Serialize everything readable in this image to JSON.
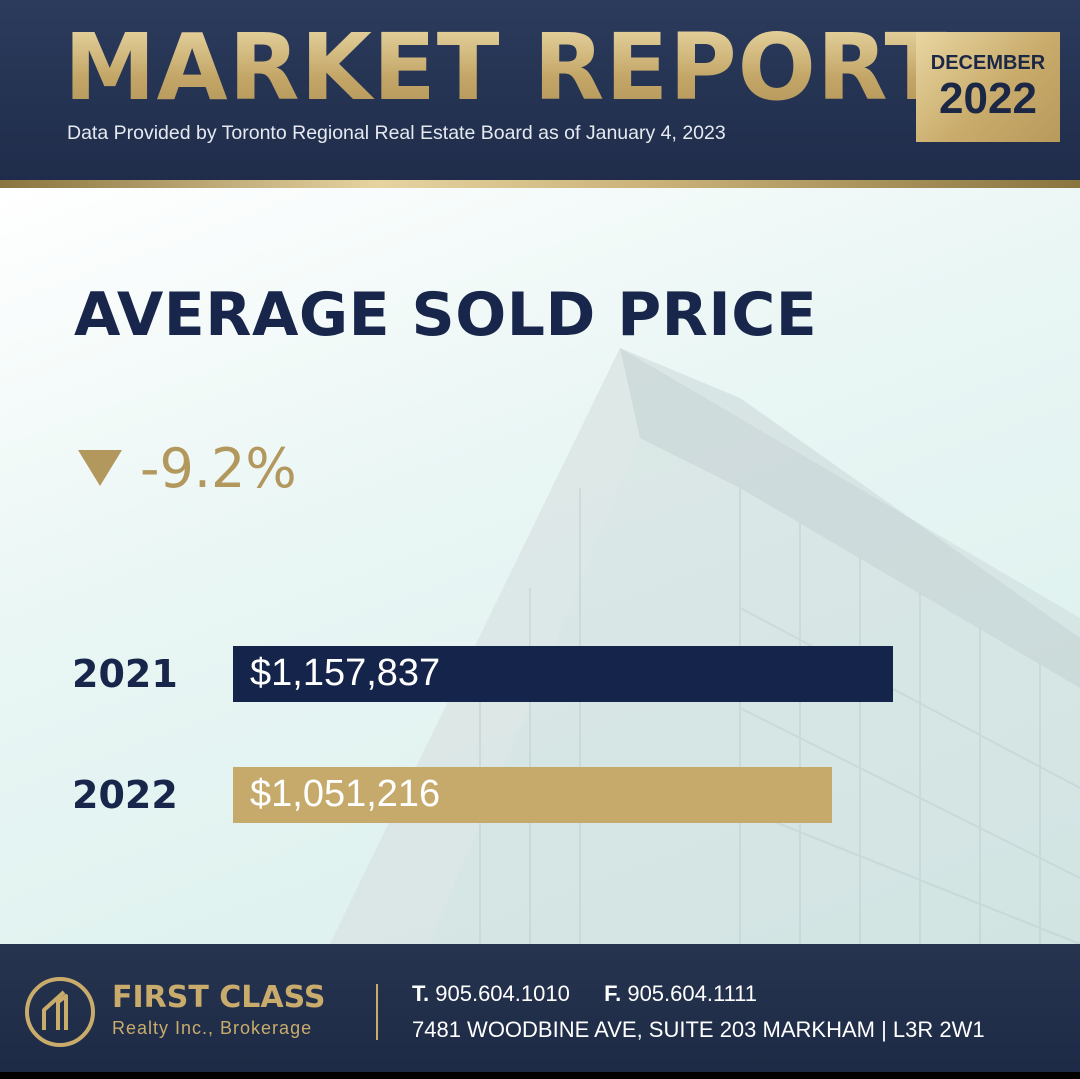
{
  "header": {
    "title": "MARKET REPORT",
    "subtitle": "Data Provided by Toronto Regional Real Estate Board as of January 4, 2023",
    "badge_month": "DECEMBER",
    "badge_year": "2022"
  },
  "change": {
    "icon": "triangle-down-icon",
    "value": "-9.2%"
  },
  "chart_data": {
    "type": "bar",
    "orientation": "horizontal",
    "title": "AVERAGE SOLD PRICE",
    "categories": [
      "2021",
      "2022"
    ],
    "values": [
      1157837,
      1051216
    ],
    "value_labels": [
      "$1,157,837",
      "$1,051,216"
    ],
    "bar_colors": [
      "#15244a",
      "#c6aa6b"
    ],
    "grid": false
  },
  "footer": {
    "brand_name": "FIRST CLASS",
    "brand_sub": "Realty Inc., Brokerage",
    "phone_label": "T.",
    "phone": "905.604.1010",
    "fax_label": "F.",
    "fax": "905.604.1111",
    "address": "7481 WOODBINE AVE, SUITE 203 MARKHAM | L3R 2W1"
  },
  "colors": {
    "navy": "#17264a",
    "gold": "#c6aa6b"
  }
}
